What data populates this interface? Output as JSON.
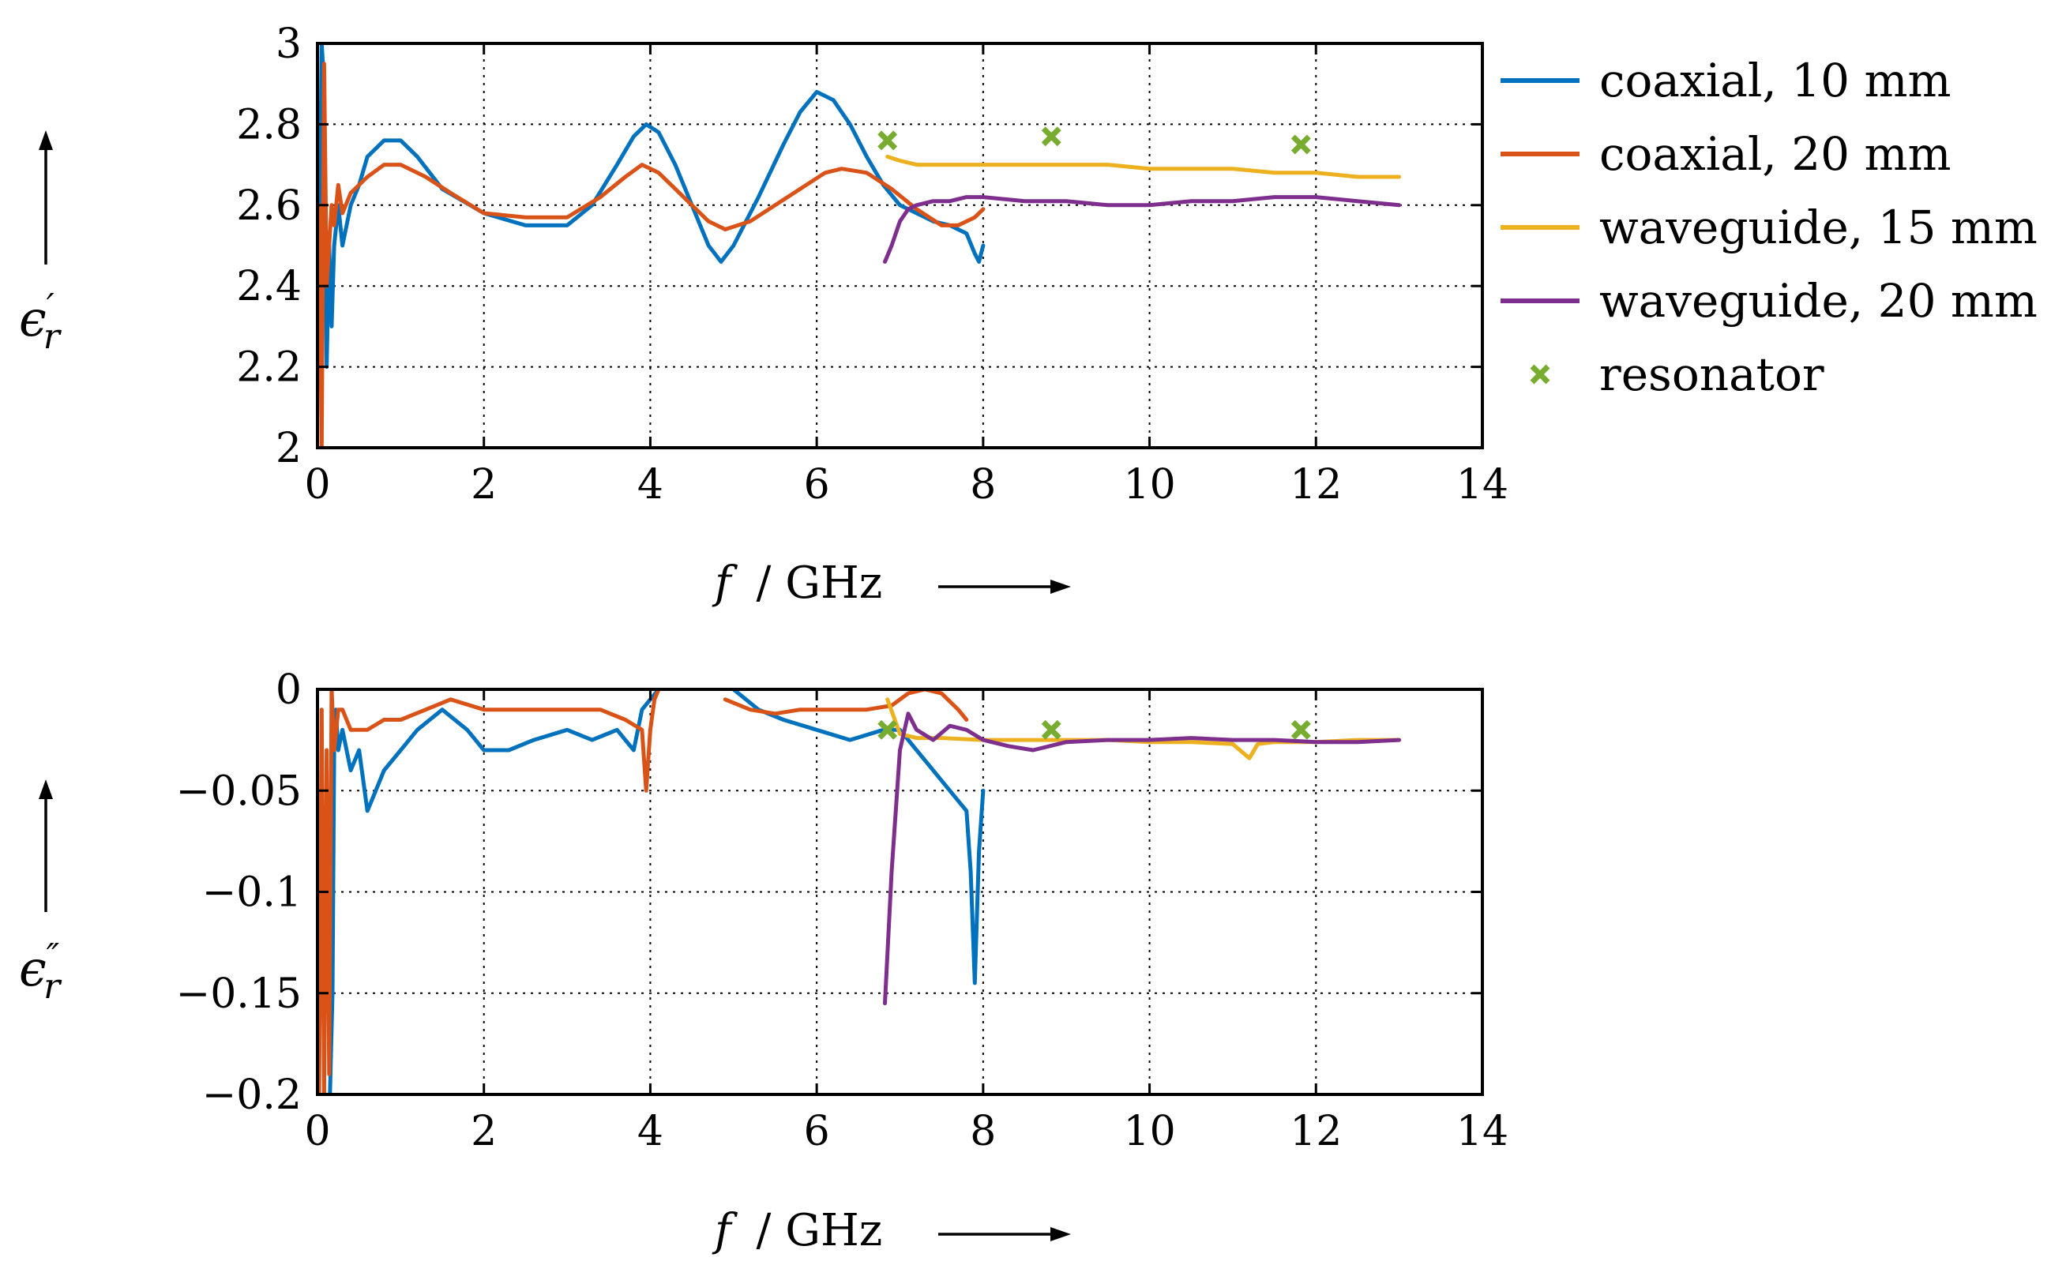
{
  "chart_data": [
    {
      "type": "line",
      "id": "top",
      "ylabel": "ϵ′r",
      "ylabel_main": "ϵ",
      "ylabel_prime": "′",
      "ylabel_sub": "r",
      "xlabel_var": "f",
      "xlabel_unit": "/ GHz",
      "xlim": [
        0,
        14
      ],
      "ylim": [
        2,
        3
      ],
      "xticks": [
        "0",
        "2",
        "4",
        "6",
        "8",
        "10",
        "12",
        "14"
      ],
      "yticks": [
        "2",
        "2.2",
        "2.4",
        "2.6",
        "2.8",
        "3"
      ],
      "xtick_values": [
        0,
        2,
        4,
        6,
        8,
        10,
        12,
        14
      ],
      "ytick_values": [
        2,
        2.2,
        2.4,
        2.6,
        2.8,
        3
      ],
      "grid": true,
      "series": [
        {
          "name": "coaxial, 10 mm",
          "color": "#0072bd",
          "x": [
            0.02,
            0.05,
            0.08,
            0.11,
            0.14,
            0.17,
            0.2,
            0.25,
            0.3,
            0.4,
            0.5,
            0.6,
            0.8,
            1.0,
            1.2,
            1.5,
            2.0,
            2.5,
            3.0,
            3.3,
            3.6,
            3.8,
            3.95,
            4.1,
            4.3,
            4.5,
            4.7,
            4.85,
            5.0,
            5.3,
            5.6,
            5.8,
            6.0,
            6.2,
            6.4,
            6.6,
            6.8,
            7.0,
            7.2,
            7.4,
            7.6,
            7.8,
            7.9,
            7.95,
            8.0
          ],
          "y": [
            2.4,
            3.0,
            2.9,
            2.2,
            2.5,
            2.3,
            2.5,
            2.6,
            2.5,
            2.6,
            2.65,
            2.72,
            2.76,
            2.76,
            2.72,
            2.64,
            2.58,
            2.55,
            2.55,
            2.6,
            2.7,
            2.77,
            2.8,
            2.78,
            2.7,
            2.6,
            2.5,
            2.46,
            2.5,
            2.62,
            2.75,
            2.83,
            2.88,
            2.86,
            2.8,
            2.72,
            2.65,
            2.6,
            2.58,
            2.56,
            2.55,
            2.53,
            2.48,
            2.46,
            2.5
          ]
        },
        {
          "name": "coaxial, 20 mm",
          "color": "#d95319",
          "x": [
            0.02,
            0.05,
            0.08,
            0.11,
            0.14,
            0.17,
            0.2,
            0.25,
            0.3,
            0.4,
            0.6,
            0.8,
            1.0,
            1.3,
            1.6,
            2.0,
            2.5,
            3.0,
            3.4,
            3.7,
            3.9,
            4.1,
            4.4,
            4.7,
            4.9,
            5.2,
            5.5,
            5.8,
            6.1,
            6.3,
            6.6,
            6.9,
            7.2,
            7.5,
            7.7,
            7.9,
            8.0
          ],
          "y": [
            2.6,
            2.0,
            2.95,
            2.4,
            2.5,
            2.6,
            2.55,
            2.65,
            2.58,
            2.63,
            2.67,
            2.7,
            2.7,
            2.67,
            2.63,
            2.58,
            2.57,
            2.57,
            2.62,
            2.67,
            2.7,
            2.68,
            2.62,
            2.56,
            2.54,
            2.56,
            2.6,
            2.64,
            2.68,
            2.69,
            2.68,
            2.64,
            2.59,
            2.55,
            2.55,
            2.57,
            2.59
          ]
        },
        {
          "name": "waveguide, 15 mm",
          "color": "#edb120",
          "x": [
            6.85,
            7.0,
            7.2,
            7.5,
            8.0,
            8.5,
            9.0,
            9.5,
            10.0,
            10.5,
            11.0,
            11.5,
            12.0,
            12.5,
            13.0
          ],
          "y": [
            2.72,
            2.71,
            2.7,
            2.7,
            2.7,
            2.7,
            2.7,
            2.7,
            2.69,
            2.69,
            2.69,
            2.68,
            2.68,
            2.67,
            2.67
          ]
        },
        {
          "name": "waveguide, 20 mm",
          "color": "#7e2f8e",
          "x": [
            6.82,
            6.9,
            7.0,
            7.1,
            7.2,
            7.4,
            7.6,
            7.8,
            8.0,
            8.5,
            9.0,
            9.5,
            10.0,
            10.5,
            11.0,
            11.5,
            12.0,
            12.5,
            13.0
          ],
          "y": [
            2.46,
            2.5,
            2.56,
            2.59,
            2.6,
            2.61,
            2.61,
            2.62,
            2.62,
            2.61,
            2.61,
            2.6,
            2.6,
            2.61,
            2.61,
            2.62,
            2.62,
            2.61,
            2.6
          ]
        },
        {
          "name": "resonator",
          "color": "#77ac30",
          "marker": "x",
          "x": [
            6.85,
            8.82,
            11.82
          ],
          "y": [
            2.76,
            2.77,
            2.75
          ]
        }
      ]
    },
    {
      "type": "line",
      "id": "bottom",
      "ylabel": "ϵ″r",
      "ylabel_main": "ϵ",
      "ylabel_prime": "″",
      "ylabel_sub": "r",
      "xlabel_var": "f",
      "xlabel_unit": "/ GHz",
      "xlim": [
        0,
        14
      ],
      "ylim": [
        -0.2,
        0
      ],
      "xticks": [
        "0",
        "2",
        "4",
        "6",
        "8",
        "10",
        "12",
        "14"
      ],
      "yticks": [
        "−0.2",
        "−0.15",
        "−0.1",
        "−0.05",
        "0"
      ],
      "xtick_values": [
        0,
        2,
        4,
        6,
        8,
        10,
        12,
        14
      ],
      "ytick_values": [
        -0.2,
        -0.15,
        -0.1,
        -0.05,
        0
      ],
      "grid": true,
      "series": [
        {
          "name": "coaxial, 10 mm",
          "color": "#0072bd",
          "x": [
            0.15,
            0.18,
            0.2,
            0.22,
            0.25,
            0.3,
            0.4,
            0.5,
            0.6,
            0.7,
            0.8,
            1.0,
            1.2,
            1.5,
            1.8,
            2.0,
            2.3,
            2.6,
            3.0,
            3.3,
            3.6,
            3.8,
            3.9,
            4.0,
            4.1,
            null,
            5.0,
            5.3,
            5.6,
            6.0,
            6.4,
            6.8,
            7.0,
            7.2,
            7.4,
            7.6,
            7.8,
            7.85,
            7.9,
            7.95,
            8.0
          ],
          "y": [
            -0.2,
            -0.15,
            -0.03,
            -0.01,
            -0.03,
            -0.02,
            -0.04,
            -0.03,
            -0.06,
            -0.05,
            -0.04,
            -0.03,
            -0.02,
            -0.01,
            -0.02,
            -0.03,
            -0.03,
            -0.025,
            -0.02,
            -0.025,
            -0.02,
            -0.03,
            -0.01,
            -0.005,
            0.0,
            null,
            0.0,
            -0.01,
            -0.015,
            -0.02,
            -0.025,
            -0.02,
            -0.02,
            -0.03,
            -0.04,
            -0.05,
            -0.06,
            -0.09,
            -0.145,
            -0.08,
            -0.05
          ]
        },
        {
          "name": "coaxial, 20 mm",
          "color": "#d95319",
          "x": [
            0.02,
            0.05,
            0.08,
            0.11,
            0.14,
            0.17,
            0.2,
            0.25,
            0.3,
            0.4,
            0.6,
            0.8,
            1.0,
            1.3,
            1.6,
            2.0,
            2.5,
            3.0,
            3.4,
            3.7,
            3.9,
            3.95,
            4.0,
            4.05,
            4.1,
            null,
            4.9,
            5.2,
            5.5,
            5.8,
            6.2,
            6.6,
            6.9,
            7.1,
            7.3,
            7.5,
            7.7,
            7.8
          ],
          "y": [
            -0.2,
            -0.01,
            -0.2,
            -0.03,
            -0.19,
            0.0,
            -0.03,
            -0.01,
            -0.01,
            -0.02,
            -0.02,
            -0.015,
            -0.015,
            -0.01,
            -0.005,
            -0.01,
            -0.01,
            -0.01,
            -0.01,
            -0.015,
            -0.02,
            -0.05,
            -0.02,
            -0.005,
            0.0,
            null,
            -0.005,
            -0.01,
            -0.012,
            -0.01,
            -0.01,
            -0.01,
            -0.008,
            -0.002,
            0.0,
            -0.002,
            -0.01,
            -0.015
          ]
        },
        {
          "name": "waveguide, 15 mm",
          "color": "#edb120",
          "x": [
            6.85,
            7.0,
            7.2,
            7.5,
            8.0,
            8.5,
            9.0,
            9.5,
            10.0,
            10.5,
            11.0,
            11.2,
            11.3,
            11.5,
            12.0,
            12.5,
            13.0
          ],
          "y": [
            -0.005,
            -0.022,
            -0.024,
            -0.024,
            -0.025,
            -0.025,
            -0.025,
            -0.025,
            -0.026,
            -0.026,
            -0.027,
            -0.034,
            -0.027,
            -0.026,
            -0.026,
            -0.025,
            -0.025
          ]
        },
        {
          "name": "waveguide, 20 mm",
          "color": "#7e2f8e",
          "x": [
            6.82,
            6.9,
            7.0,
            7.1,
            7.2,
            7.4,
            7.6,
            7.8,
            8.0,
            8.3,
            8.6,
            9.0,
            9.5,
            10.0,
            10.5,
            11.0,
            11.5,
            12.0,
            12.5,
            13.0
          ],
          "y": [
            -0.155,
            -0.09,
            -0.03,
            -0.012,
            -0.02,
            -0.025,
            -0.018,
            -0.02,
            -0.025,
            -0.028,
            -0.03,
            -0.026,
            -0.025,
            -0.025,
            -0.024,
            -0.025,
            -0.025,
            -0.026,
            -0.026,
            -0.025
          ]
        },
        {
          "name": "resonator",
          "color": "#77ac30",
          "marker": "x",
          "x": [
            6.85,
            8.82,
            11.82
          ],
          "y": [
            -0.02,
            -0.02,
            -0.02
          ]
        }
      ]
    }
  ],
  "legend": [
    {
      "label": "coaxial, 10 mm",
      "color": "#0072bd",
      "kind": "line"
    },
    {
      "label": "coaxial, 20 mm",
      "color": "#d95319",
      "kind": "line"
    },
    {
      "label": "waveguide, 15 mm",
      "color": "#edb120",
      "kind": "line"
    },
    {
      "label": "waveguide, 20 mm",
      "color": "#7e2f8e",
      "kind": "line"
    },
    {
      "label": "resonator",
      "color": "#77ac30",
      "kind": "marker"
    }
  ]
}
